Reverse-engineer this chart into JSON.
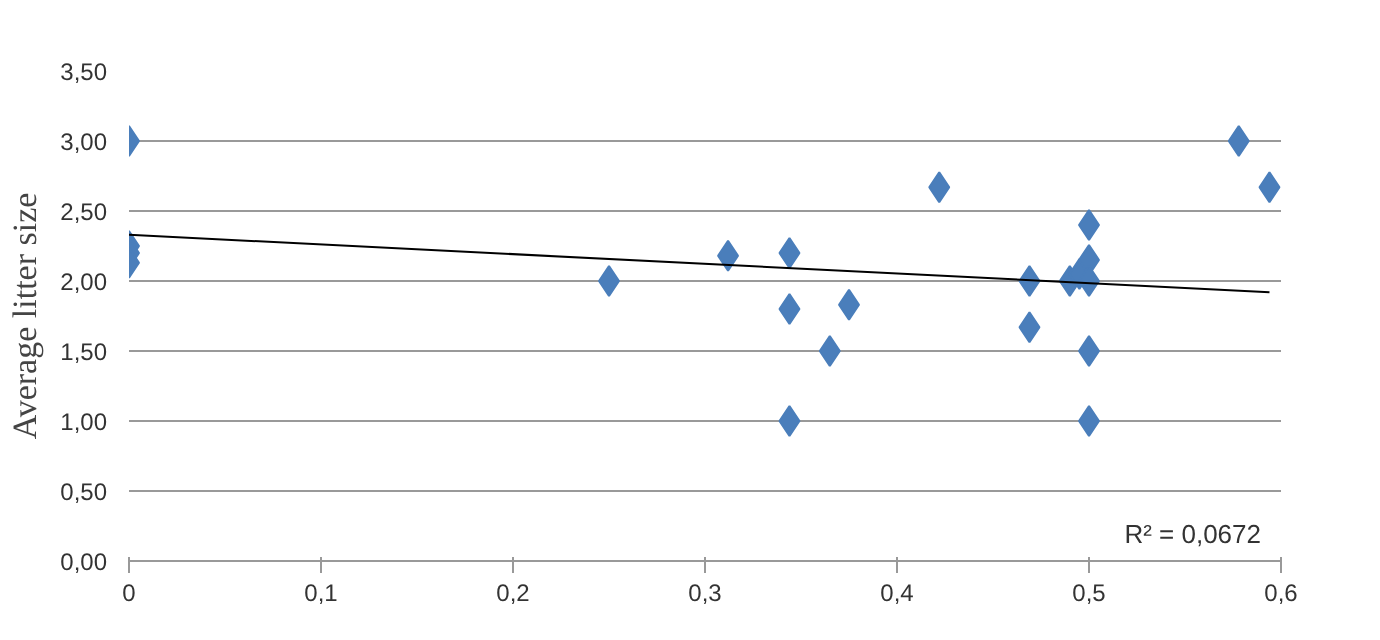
{
  "chart_data": {
    "type": "scatter",
    "ylabel": "Average litter size",
    "grid": "y",
    "xlim": [
      0,
      0.6
    ],
    "xticks": [
      0,
      {
        "value": 0.1,
        "label": "0,1"
      },
      {
        "value": 0.2,
        "label": "0,2"
      },
      {
        "value": 0.3,
        "label": "0,3"
      },
      {
        "value": 0.4,
        "label": "0,4"
      },
      {
        "value": 0.5,
        "label": "0,5"
      },
      {
        "value": 0.6,
        "label": "0,6"
      }
    ],
    "ylim": [
      0,
      3.5
    ],
    "yticks": [
      {
        "value": 0,
        "label": "0,00"
      },
      {
        "value": 0.5,
        "label": "0,50"
      },
      {
        "value": 1,
        "label": "1,00"
      },
      {
        "value": 1.5,
        "label": "1,50"
      },
      {
        "value": 2,
        "label": "2,00"
      },
      {
        "value": 2.5,
        "label": "2,50"
      },
      {
        "value": 3,
        "label": "3,00"
      },
      {
        "value": 3.5,
        "label": "3,50"
      }
    ],
    "series": [
      {
        "marker": "diamond",
        "color": "#4a7ebb",
        "x": [
          0,
          0,
          0,
          0,
          0.25,
          0.312,
          0.344,
          0.344,
          0.344,
          0.365,
          0.375,
          0.422,
          0.469,
          0.469,
          0.49,
          0.495,
          0.5,
          0.5,
          0.5,
          0.5,
          0.5,
          0.578,
          0.594
        ],
        "values": [
          3.0,
          2.25,
          2.2,
          2.13,
          2.0,
          2.18,
          2.2,
          1.8,
          1.0,
          1.5,
          1.83,
          2.67,
          2.0,
          1.67,
          2.0,
          2.05,
          2.4,
          2.15,
          2.0,
          1.5,
          1.0,
          3.0,
          2.67
        ]
      },
      {
        "type": "line",
        "color": "#000000",
        "x": [
          0,
          0.594
        ],
        "values": [
          2.33,
          1.92
        ]
      }
    ],
    "annotations": [
      "R² = 0,0672"
    ]
  }
}
